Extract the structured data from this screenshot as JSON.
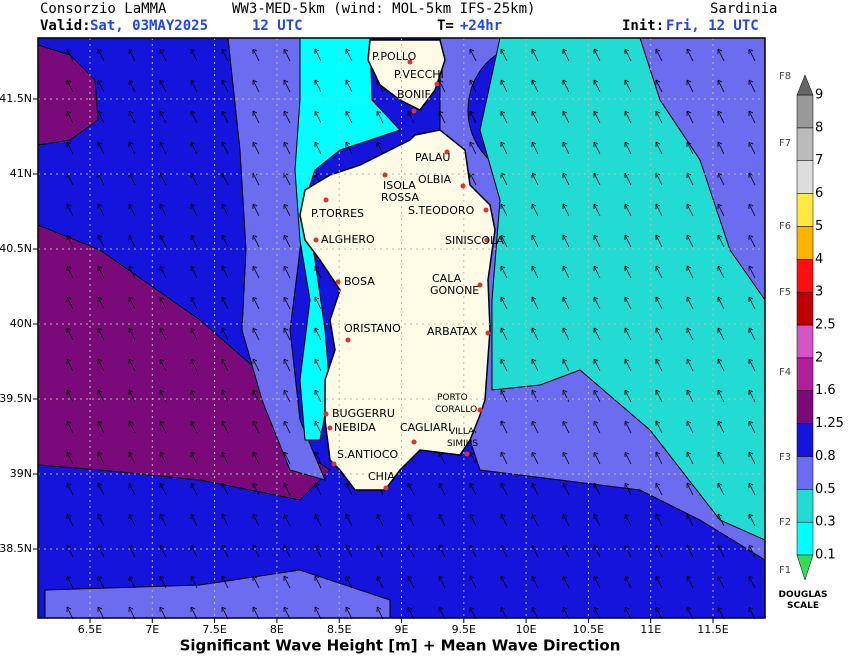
{
  "header": {
    "org": "Consorzio LaMMA",
    "model": "WW3-MED-5km (wind: MOL-5km IFS-25km)",
    "region": "Sardinia",
    "valid_label": "Valid:",
    "valid_date": "Sat, 03MAY2025",
    "valid_time": "12 UTC",
    "t_label": "T=",
    "t_value": "+24hr",
    "init_label": "Init:",
    "init_value": "Fri, 12 UTC"
  },
  "map": {
    "lon_ticks": [
      {
        "value": 6.5,
        "label": "6.5E"
      },
      {
        "value": 7,
        "label": "7E"
      },
      {
        "value": 7.5,
        "label": "7.5E"
      },
      {
        "value": 8,
        "label": "8E"
      },
      {
        "value": 8.5,
        "label": "8.5E"
      },
      {
        "value": 9,
        "label": "9E"
      },
      {
        "value": 9.5,
        "label": "9.5E"
      },
      {
        "value": 10,
        "label": "10E"
      },
      {
        "value": 10.5,
        "label": "10.5E"
      },
      {
        "value": 11,
        "label": "11E"
      },
      {
        "value": 11.5,
        "label": "11.5E"
      }
    ],
    "lat_ticks": [
      {
        "value": 41.5,
        "label": "41.5N"
      },
      {
        "value": 41,
        "label": "41N"
      },
      {
        "value": 40.5,
        "label": "40.5N"
      },
      {
        "value": 40,
        "label": "40N"
      },
      {
        "value": 39.5,
        "label": "39.5N"
      },
      {
        "value": 39,
        "label": "39N"
      },
      {
        "value": 38.5,
        "label": "38.5N"
      }
    ],
    "places": [
      "P.POLLO",
      "P.VECCHI",
      "BONIF",
      "PALAU",
      "OLBIA",
      "ISOLA ROSSA",
      "P.TORRES",
      "S.TEODORO",
      "ALGHERO",
      "SINISCOLA",
      "BOSA",
      "CALA GONONE",
      "ORISTANO",
      "ARBATAX",
      "PORTO CORALLO",
      "BUGGERRU",
      "NEBIDA",
      "CAGLIARI",
      "VILLA SIMIUS",
      "S.ANTIOCO",
      "CHIA"
    ],
    "footer": "Significant Wave Height [m] + Mean Wave Direction"
  },
  "colorbar": {
    "levels": [
      0.1,
      0.3,
      0.5,
      0.8,
      1.25,
      1.6,
      2,
      2.5,
      3,
      4,
      5,
      6,
      7,
      8,
      9
    ],
    "colors": [
      "#33dd55",
      "#00ffff",
      "#22dcd4",
      "#6c6cf0",
      "#1414dd",
      "#7a0a7a",
      "#b0209c",
      "#d455c4",
      "#c00000",
      "#ff1010",
      "#ffb400",
      "#ffe840",
      "#dddddd",
      "#bbbbbb",
      "#999999",
      "#666666"
    ],
    "douglas": [
      "F1",
      "F2",
      "F3",
      "F4",
      "F5",
      "F6",
      "F7",
      "F8"
    ],
    "scale_label": "DOUGLAS SCALE"
  }
}
